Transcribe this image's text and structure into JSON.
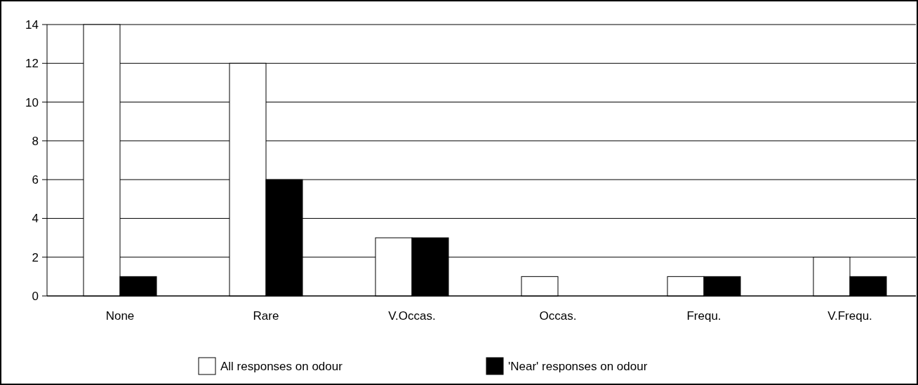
{
  "chart_data": {
    "type": "bar",
    "categories": [
      "None",
      "Rare",
      "V.Occas.",
      "Occas.",
      "Frequ.",
      "V.Frequ."
    ],
    "series": [
      {
        "name": "All responses on odour",
        "color": "#ffffff",
        "values": [
          14,
          12,
          3,
          1,
          1,
          2
        ]
      },
      {
        "name": "'Near' responses on odour",
        "color": "#000000",
        "values": [
          1,
          6,
          3,
          0,
          1,
          1
        ]
      }
    ],
    "ylim": [
      0,
      14
    ],
    "yticks": [
      0,
      2,
      4,
      6,
      8,
      10,
      12,
      14
    ],
    "grid": "y",
    "legend": "bottom"
  }
}
